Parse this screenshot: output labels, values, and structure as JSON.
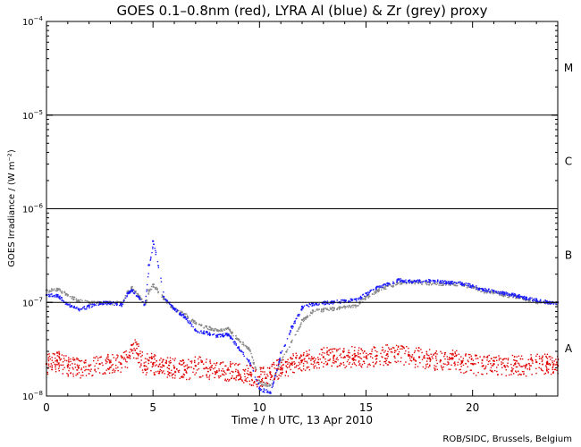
{
  "chart_data": {
    "type": "scatter",
    "title": "GOES 0.1–0.8nm (red), LYRA Al (blue) & Zr (grey) proxy",
    "xlabel": "Time / h UTC, 13 Apr 2010",
    "ylabel": "GOES Irradiance / (W m⁻²)",
    "xlim": [
      0,
      24
    ],
    "ylim": [
      1e-08,
      0.0001
    ],
    "yscale": "log",
    "x_ticks": [
      0,
      5,
      10,
      15,
      20
    ],
    "x_tick_labels": [
      "0",
      "5",
      "10",
      "15",
      "20"
    ],
    "y_ticks": [
      {
        "value": 1e-08,
        "base": "10",
        "exp": "−8"
      },
      {
        "value": 1e-07,
        "base": "10",
        "exp": "−7"
      },
      {
        "value": 1e-06,
        "base": "10",
        "exp": "−6"
      },
      {
        "value": 1e-05,
        "base": "10",
        "exp": "−5"
      },
      {
        "value": 0.0001,
        "base": "10",
        "exp": "−4"
      }
    ],
    "class_thresholds": [
      1e-07,
      1e-06,
      1e-05
    ],
    "class_labels": [
      {
        "label": "A",
        "value": 3.2e-08
      },
      {
        "label": "B",
        "value": 3.2e-07
      },
      {
        "label": "C",
        "value": 3.2e-06
      },
      {
        "label": "M",
        "value": 3.2e-05
      }
    ],
    "series": [
      {
        "name": "LYRA Zr (grey) proxy",
        "color": "#888888",
        "x": [
          0,
          0.5,
          1,
          1.5,
          2,
          2.5,
          3,
          3.5,
          3.8,
          4,
          4.3,
          4.6,
          4.8,
          5,
          5.5,
          6,
          6.5,
          7,
          7.5,
          8,
          8.5,
          9,
          9.5,
          10,
          10.5,
          11,
          11.5,
          12,
          12.5,
          13,
          13.5,
          14,
          14.5,
          15,
          15.5,
          16,
          16.5,
          17,
          17.5,
          18,
          18.5,
          19,
          19.5,
          20,
          20.5,
          21,
          21.5,
          22,
          22.5,
          23,
          23.5,
          24
        ],
        "y": [
          1.35e-07,
          1.4e-07,
          1.2e-07,
          1.05e-07,
          1e-07,
          1e-07,
          1e-07,
          1e-07,
          1.3e-07,
          1.45e-07,
          1.2e-07,
          9.5e-08,
          1.35e-07,
          1.55e-07,
          1.1e-07,
          8.5e-08,
          7.5e-08,
          6e-08,
          5.5e-08,
          5.1e-08,
          5.3e-08,
          4e-08,
          3.2e-08,
          1.4e-08,
          1.3e-08,
          2.4e-08,
          3.8e-08,
          6.5e-08,
          8.2e-08,
          8.4e-08,
          8.7e-08,
          9e-08,
          9.3e-08,
          1.15e-07,
          1.35e-07,
          1.5e-07,
          1.6e-07,
          1.68e-07,
          1.65e-07,
          1.62e-07,
          1.6e-07,
          1.6e-07,
          1.55e-07,
          1.48e-07,
          1.33e-07,
          1.3e-07,
          1.2e-07,
          1.17e-07,
          1.08e-07,
          1.02e-07,
          1e-07,
          1e-07
        ]
      },
      {
        "name": "LYRA Al (blue) proxy",
        "color": "#1a1aff",
        "x": [
          0,
          0.5,
          1,
          1.5,
          2,
          2.5,
          3,
          3.5,
          3.8,
          4,
          4.3,
          4.6,
          4.8,
          5,
          5.5,
          6,
          6.5,
          7,
          7.5,
          8,
          8.5,
          9,
          9.5,
          10,
          10.5,
          11,
          11.5,
          12,
          12.5,
          13,
          13.5,
          14,
          14.5,
          15,
          15.5,
          16,
          16.5,
          17,
          17.5,
          18,
          18.5,
          19,
          19.5,
          20,
          20.5,
          21,
          21.5,
          22,
          22.5,
          23,
          23.5,
          24
        ],
        "y": [
          1.2e-07,
          1.2e-07,
          9.5e-08,
          8.5e-08,
          9.2e-08,
          1e-07,
          1e-07,
          9.5e-08,
          1.25e-07,
          1.35e-07,
          1.15e-07,
          9.5e-08,
          2.5e-07,
          4.5e-07,
          1.15e-07,
          8.5e-08,
          7e-08,
          5e-08,
          4.8e-08,
          4.4e-08,
          4.6e-08,
          3.3e-08,
          2.4e-08,
          1.2e-08,
          1.1e-08,
          2.9e-08,
          5.5e-08,
          9e-08,
          9.8e-08,
          1e-07,
          1.02e-07,
          1.05e-07,
          1.08e-07,
          1.25e-07,
          1.45e-07,
          1.6e-07,
          1.75e-07,
          1.7e-07,
          1.7e-07,
          1.72e-07,
          1.68e-07,
          1.65e-07,
          1.6e-07,
          1.5e-07,
          1.38e-07,
          1.33e-07,
          1.27e-07,
          1.2e-07,
          1.13e-07,
          1.07e-07,
          1.02e-07,
          1e-07
        ]
      },
      {
        "name": "GOES 0.1–0.8nm (red)",
        "color": "#e00000",
        "x": [
          0,
          0.5,
          1,
          1.5,
          2,
          2.5,
          3,
          3.5,
          3.8,
          4,
          4.3,
          4.6,
          4.8,
          5,
          5.5,
          6,
          6.5,
          7,
          7.5,
          8,
          8.5,
          9,
          9.5,
          10,
          10.5,
          11,
          11.5,
          12,
          12.5,
          13,
          13.5,
          14,
          14.5,
          15,
          15.5,
          16,
          16.5,
          17,
          17.5,
          18,
          18.5,
          19,
          19.5,
          20,
          20.5,
          21,
          21.5,
          22,
          22.5,
          23,
          23.5,
          24
        ],
        "y": [
          2.2e-08,
          2.4e-08,
          2.1e-08,
          2e-08,
          2.1e-08,
          2.2e-08,
          2.3e-08,
          2.2e-08,
          2.6e-08,
          3.5e-08,
          2.8e-08,
          2.1e-08,
          2.4e-08,
          2.2e-08,
          2.1e-08,
          2e-08,
          1.9e-08,
          2.1e-08,
          2e-08,
          1.8e-08,
          1.9e-08,
          1.8e-08,
          1.7e-08,
          1.6e-08,
          1.8e-08,
          2e-08,
          2.2e-08,
          2.4e-08,
          2.5e-08,
          2.6e-08,
          2.7e-08,
          2.6e-08,
          2.7e-08,
          2.6e-08,
          2.7e-08,
          2.8e-08,
          2.8e-08,
          2.7e-08,
          2.6e-08,
          2.5e-08,
          2.4e-08,
          2.5e-08,
          2.3e-08,
          2.2e-08,
          2.1e-08,
          2.2e-08,
          2.1e-08,
          2.2e-08,
          2.1e-08,
          2.3e-08,
          2.2e-08,
          2.1e-08
        ]
      }
    ]
  },
  "credit": "ROB/SIDC, Brussels, Belgium"
}
